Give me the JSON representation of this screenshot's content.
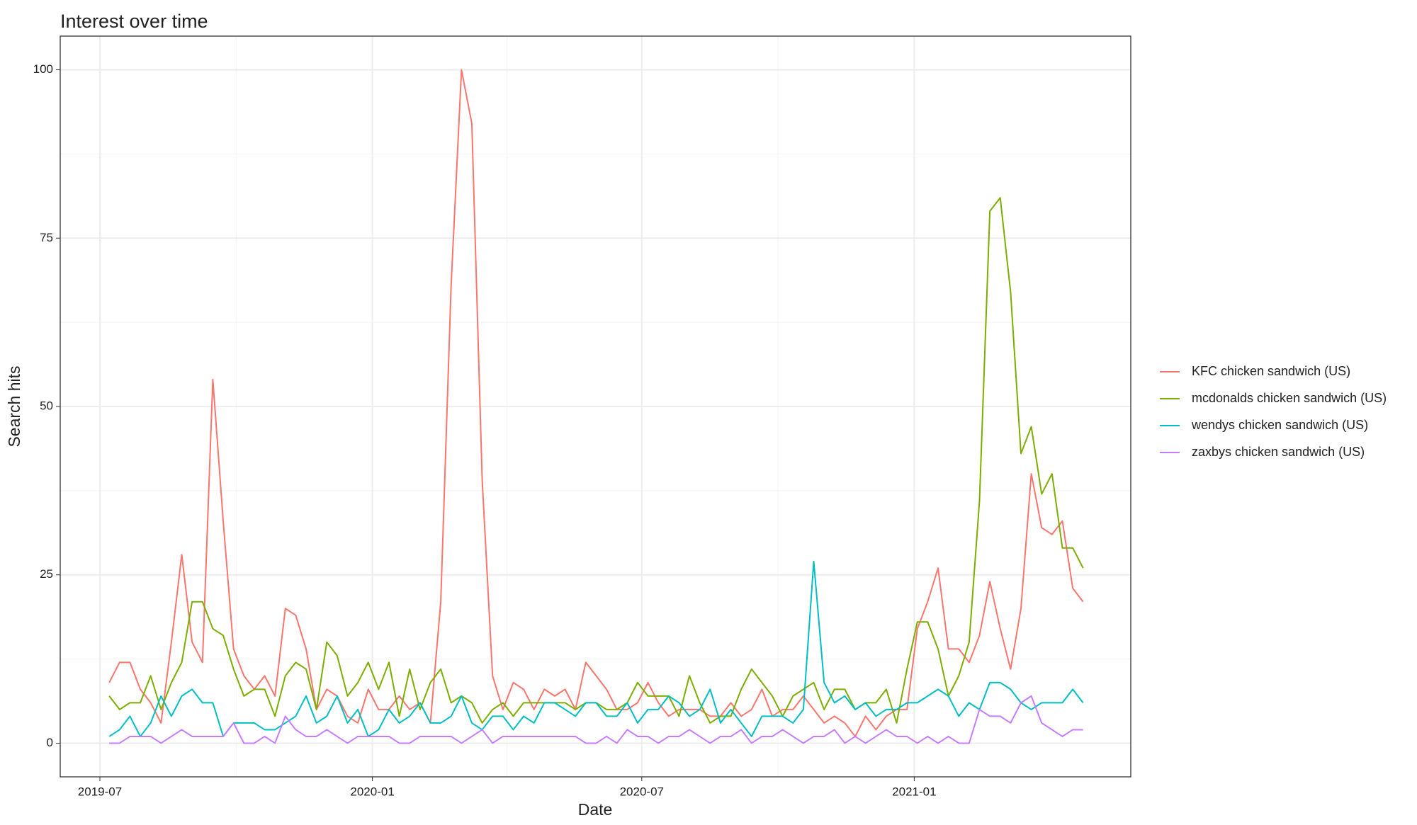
{
  "chart_data": {
    "type": "line",
    "title": "Interest over time",
    "x_label": "Date",
    "y_label": "Search hits",
    "x": [
      0,
      1,
      2,
      3,
      4,
      5,
      6,
      7,
      8,
      9,
      10,
      11,
      12,
      13,
      14,
      15,
      16,
      17,
      18,
      19,
      20,
      21,
      22,
      23,
      24,
      25,
      26,
      27,
      28,
      29,
      30,
      31,
      32,
      33,
      34,
      35,
      36,
      37,
      38,
      39,
      40,
      41,
      42,
      43,
      44,
      45,
      46,
      47,
      48,
      49,
      50,
      51,
      52,
      53,
      54,
      55,
      56,
      57,
      58,
      59,
      60,
      61,
      62,
      63,
      64,
      65,
      66,
      67,
      68,
      69,
      70,
      71,
      72,
      73,
      74,
      75,
      76,
      77,
      78,
      79,
      80,
      81,
      82,
      83,
      84,
      85,
      86,
      87,
      88,
      89,
      90,
      91,
      92,
      93,
      94
    ],
    "xlim": [
      -4.73,
      98.6
    ],
    "xticks": [
      {
        "value": -0.9,
        "label": "2019-07"
      },
      {
        "value": 25.4,
        "label": "2020-01"
      },
      {
        "value": 51.4,
        "label": "2020-07"
      },
      {
        "value": 77.7,
        "label": "2021-01"
      }
    ],
    "ylim": [
      -5,
      105
    ],
    "yticks": [
      0,
      25,
      50,
      75,
      100
    ],
    "grid": true,
    "legend": "right",
    "series": [
      {
        "name": "KFC chicken sandwich (US)",
        "color": "#F8766D",
        "values": [
          9,
          12,
          12,
          8,
          6,
          3,
          15,
          28,
          15,
          12,
          54,
          33,
          14,
          10,
          8,
          10,
          7,
          20,
          19,
          14,
          5,
          8,
          7,
          4,
          3,
          8,
          5,
          5,
          7,
          5,
          6,
          3,
          21,
          68,
          100,
          92,
          39,
          10,
          5,
          9,
          8,
          5,
          8,
          7,
          8,
          5,
          12,
          10,
          8,
          5,
          5,
          6,
          9,
          6,
          4,
          5,
          5,
          5,
          4,
          4,
          6,
          4,
          5,
          8,
          4,
          5,
          5,
          7,
          5,
          3,
          4,
          3,
          1,
          4,
          2,
          4,
          5,
          5,
          17,
          21,
          26,
          14,
          14,
          12,
          16,
          24,
          17,
          11,
          20,
          40,
          32,
          31,
          33,
          23,
          21
        ]
      },
      {
        "name": "mcdonalds chicken sandwich (US)",
        "color": "#7CAE00",
        "values": [
          7,
          5,
          6,
          6,
          10,
          5,
          9,
          12,
          21,
          21,
          17,
          16,
          11,
          7,
          8,
          8,
          4,
          10,
          12,
          11,
          5,
          15,
          13,
          7,
          9,
          12,
          8,
          12,
          4,
          11,
          5,
          9,
          11,
          6,
          7,
          6,
          3,
          5,
          6,
          4,
          6,
          6,
          6,
          6,
          6,
          5,
          6,
          6,
          5,
          5,
          6,
          9,
          7,
          7,
          7,
          4,
          10,
          6,
          3,
          4,
          4,
          8,
          11,
          9,
          7,
          4,
          7,
          8,
          9,
          5,
          8,
          8,
          5,
          6,
          6,
          8,
          3,
          11,
          18,
          18,
          14,
          7,
          10,
          15,
          36,
          79,
          81,
          67,
          43,
          47,
          37,
          40,
          29,
          29,
          26
        ]
      },
      {
        "name": "wendys chicken sandwich (US)",
        "color": "#00BFC4",
        "values": [
          1,
          2,
          4,
          1,
          3,
          7,
          4,
          7,
          8,
          6,
          6,
          1,
          3,
          3,
          3,
          2,
          2,
          3,
          4,
          7,
          3,
          4,
          7,
          3,
          5,
          1,
          2,
          5,
          3,
          4,
          6,
          3,
          3,
          4,
          7,
          3,
          2,
          4,
          4,
          2,
          4,
          3,
          6,
          6,
          5,
          4,
          6,
          6,
          4,
          4,
          6,
          3,
          5,
          5,
          7,
          6,
          4,
          5,
          8,
          3,
          5,
          3,
          1,
          4,
          4,
          4,
          3,
          5,
          27,
          9,
          6,
          7,
          5,
          6,
          4,
          5,
          5,
          6,
          6,
          7,
          8,
          7,
          4,
          6,
          5,
          9,
          9,
          8,
          6,
          5,
          6,
          6,
          6,
          8,
          6
        ]
      },
      {
        "name": "zaxbys chicken sandwich (US)",
        "color": "#C77CFF",
        "values": [
          0,
          0,
          1,
          1,
          1,
          0,
          1,
          2,
          1,
          1,
          1,
          1,
          3,
          0,
          0,
          1,
          0,
          4,
          2,
          1,
          1,
          2,
          1,
          0,
          1,
          1,
          1,
          1,
          0,
          0,
          1,
          1,
          1,
          1,
          0,
          1,
          2,
          0,
          1,
          1,
          1,
          1,
          1,
          1,
          1,
          1,
          0,
          0,
          1,
          0,
          2,
          1,
          1,
          0,
          1,
          1,
          2,
          1,
          0,
          1,
          1,
          2,
          0,
          1,
          1,
          2,
          1,
          0,
          1,
          1,
          2,
          0,
          1,
          0,
          1,
          2,
          1,
          1,
          0,
          1,
          0,
          1,
          0,
          0,
          5,
          4,
          4,
          3,
          6,
          7,
          3,
          2,
          1,
          2,
          2
        ]
      }
    ]
  }
}
